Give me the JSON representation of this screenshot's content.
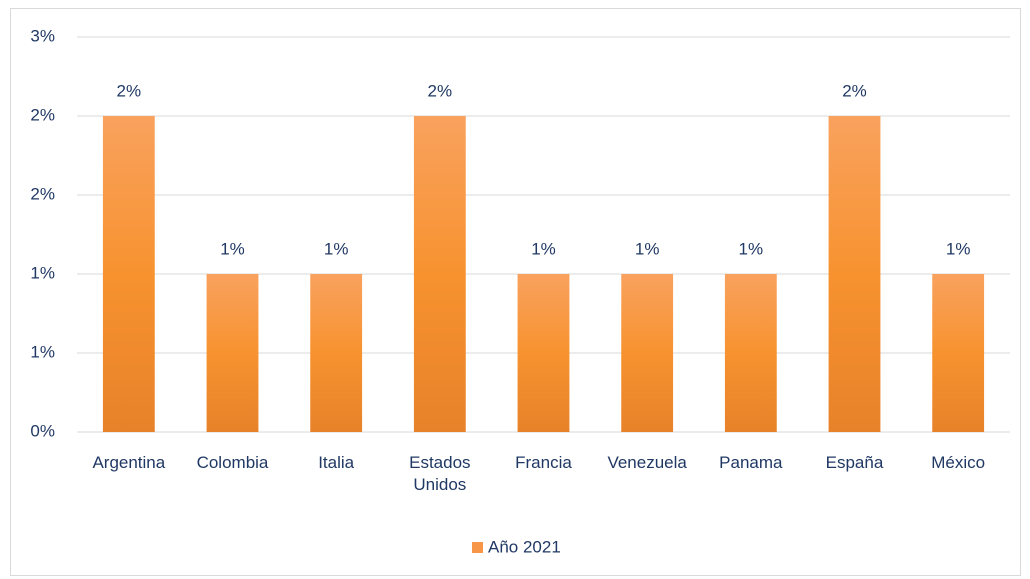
{
  "chart_data": {
    "type": "bar",
    "categories": [
      "Argentina",
      "Colombia",
      "Italia",
      "Estados Unidos",
      "Francia",
      "Venezuela",
      "Panama",
      "España",
      "México"
    ],
    "series": [
      {
        "name": "Año 2021",
        "color": "#f79646",
        "values": [
          2,
          1,
          1,
          2,
          1,
          1,
          1,
          2,
          1
        ],
        "value_labels": [
          "2%",
          "1%",
          "1%",
          "2%",
          "1%",
          "1%",
          "1%",
          "2%",
          "1%"
        ]
      }
    ],
    "ylim": [
      0,
      2.5
    ],
    "yticks": [
      {
        "value": 0,
        "label": "0%"
      },
      {
        "value": 0.5,
        "label": "1%"
      },
      {
        "value": 1,
        "label": "1%"
      },
      {
        "value": 1.5,
        "label": "2%"
      },
      {
        "value": 2,
        "label": "2%"
      },
      {
        "value": 2.5,
        "label": "3%"
      }
    ],
    "grid": true,
    "legend": "bottom"
  }
}
